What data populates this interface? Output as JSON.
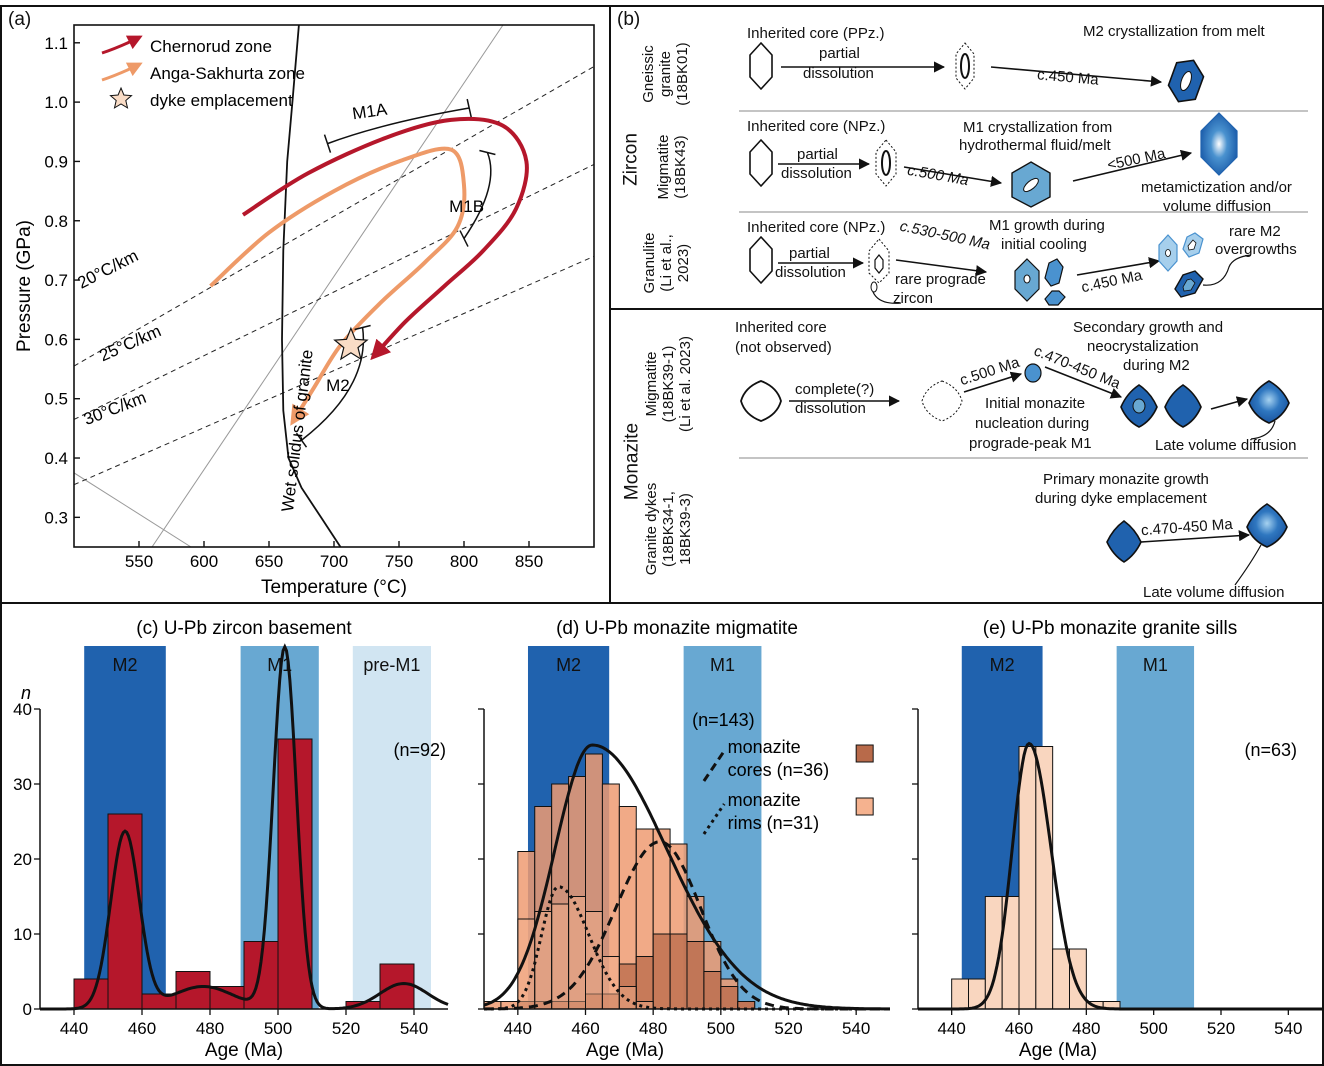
{
  "panel_labels": {
    "a": "(a)",
    "b": "(b)"
  },
  "panel_a": {
    "legend": [
      "Chernorud zone",
      "Anga-Sakhurta zone",
      "dyke emplacement"
    ],
    "colors": {
      "chernorud": "#b5172b",
      "anga": "#ee9a68",
      "star": "#f9dcc6"
    },
    "path_labels": {
      "m1a": "M1A",
      "m1b": "M1B",
      "m2": "M2"
    },
    "gradients": [
      "20°C/km",
      "25°C/km",
      "30°C/km"
    ],
    "solidus_label": "Wet solidus of granite"
  },
  "panel_b": {
    "group_zircon": "Zircon",
    "group_monazite": "Monazite",
    "rows": [
      {
        "label": [
          "Gneissic",
          "granite",
          "(18BK01)"
        ],
        "texts": [
          "Inherited core (PPz.)",
          "partial",
          "dissolution",
          "M2 crystallization from melt",
          "c.450 Ma"
        ]
      },
      {
        "label": [
          "Migmatite",
          "(18BK43)"
        ],
        "texts": [
          "Inherited core (NPz.)",
          "M1 crystallization from",
          "hydrothermal fluid/melt",
          "partial",
          "dissolution",
          "c.500 Ma",
          "<500 Ma",
          "metamictization and/or",
          "volume diffusion"
        ]
      },
      {
        "label": [
          "Granulite",
          "(Li et al.,",
          "2023)"
        ],
        "texts": [
          "Inherited core (NPz.)",
          "c.530-500 Ma",
          "M1 growth during",
          "initial cooling",
          "partial",
          "dissolution",
          "rare prograde",
          "zircon",
          "rare M2",
          "overgrowths",
          "c.450 Ma"
        ]
      },
      {
        "label": [
          "Migmatite",
          "(18BK39-1)",
          "(Li et al. 2023)"
        ],
        "texts": [
          "Inherited core",
          "(not observed)",
          "Secondary growth and",
          "neocrystalization",
          "during M2",
          "c.500 Ma",
          "c.470-450 Ma",
          "complete(?)",
          "dissolution",
          "Initial monazite",
          "nucleation during",
          "prograde-peak M1",
          "Late volume diffusion"
        ]
      },
      {
        "label": [
          "Granite dykes",
          "(18BK34-1,",
          "18BK39-3)"
        ],
        "texts": [
          "Primary monazite growth",
          "during dyke emplacement",
          "c.470-450 Ma",
          "Late volume diffusion"
        ]
      }
    ]
  },
  "chart_data": [
    {
      "type": "line",
      "panel": "(a)",
      "xlabel": "Temperature (°C)",
      "ylabel": "Pressure (GPa)",
      "xlim": [
        500,
        900
      ],
      "ylim": [
        0.25,
        1.13
      ],
      "xticks": [
        550,
        600,
        650,
        700,
        750,
        800,
        850
      ],
      "yticks": [
        0.3,
        0.4,
        0.5,
        0.6,
        0.7,
        0.8,
        0.9,
        1.0,
        1.1
      ],
      "series": [
        {
          "name": "Chernorud zone",
          "x": [
            630,
            680,
            740,
            790,
            830,
            848,
            840,
            815,
            785,
            755,
            730
          ],
          "y": [
            0.81,
            0.88,
            0.94,
            0.97,
            0.96,
            0.9,
            0.82,
            0.75,
            0.69,
            0.63,
            0.57
          ]
        },
        {
          "name": "Anga-Sakhurta zone",
          "x": [
            605,
            650,
            700,
            750,
            790,
            800,
            795,
            770,
            735,
            705,
            685,
            668
          ],
          "y": [
            0.69,
            0.78,
            0.85,
            0.9,
            0.92,
            0.86,
            0.79,
            0.73,
            0.66,
            0.59,
            0.52,
            0.46
          ]
        },
        {
          "name": "dyke emplacement",
          "x": [
            713
          ],
          "y": [
            0.59
          ]
        }
      ]
    },
    {
      "type": "bar",
      "title": "(c) U-Pb zircon basement",
      "xlabel": "Age (Ma)",
      "ylabel": "n",
      "xlim": [
        430,
        550
      ],
      "ylim": [
        0,
        40
      ],
      "xticks": [
        440,
        460,
        480,
        500,
        520,
        540
      ],
      "yticks": [
        0,
        10,
        20,
        30,
        40
      ],
      "annotation": "(n=92)",
      "bands": [
        {
          "name": "M2",
          "from": 443,
          "to": 467,
          "color": "#2062ae"
        },
        {
          "name": "M1",
          "from": 489,
          "to": 512,
          "color": "#68a8d2"
        },
        {
          "name": "pre-M1",
          "from": 522,
          "to": 545,
          "color": "#d1e5f2"
        }
      ],
      "bin_width": 10,
      "bin_starts": [
        440,
        450,
        460,
        470,
        480,
        490,
        500,
        510,
        520,
        530
      ],
      "values": [
        4,
        26,
        2,
        5,
        3,
        9,
        36,
        0,
        1,
        6
      ],
      "bar_color": "#b5172b",
      "kde_peaks": [
        {
          "center": 455,
          "sigma": 4.2,
          "height": 23.6
        },
        {
          "center": 502,
          "sigma": 3.4,
          "height": 48.2
        },
        {
          "center": 478,
          "sigma": 9.0,
          "height": 3.0
        },
        {
          "center": 537,
          "sigma": 7.0,
          "height": 3.4
        }
      ]
    },
    {
      "type": "bar",
      "title": "(d) U-Pb monazite migmatite",
      "xlabel": "Age (Ma)",
      "ylabel": "",
      "xlim": [
        430,
        550
      ],
      "ylim": [
        0,
        40
      ],
      "xticks": [
        440,
        460,
        480,
        500,
        520,
        540
      ],
      "annotation": "(n=143)",
      "bands": [
        {
          "name": "M2",
          "from": 443,
          "to": 467,
          "color": "#2062ae"
        },
        {
          "name": "M1",
          "from": 489,
          "to": 512,
          "color": "#68a8d2"
        }
      ],
      "bin_width": 5,
      "bin_starts": [
        430,
        435,
        440,
        445,
        450,
        455,
        460,
        465,
        470,
        475,
        480,
        485,
        490,
        495,
        500,
        505
      ],
      "legend": [
        {
          "name": "monazite cores (n=36)",
          "line": "dashed",
          "color": "#b86a4a"
        },
        {
          "name": "monazite rims (n=31)",
          "line": "dotted",
          "color": "#f5b28f"
        }
      ],
      "series": [
        {
          "name": "all",
          "values": [
            1,
            1,
            21,
            27,
            30,
            31,
            34,
            30,
            27,
            24,
            24,
            22,
            15,
            9,
            4,
            1
          ]
        },
        {
          "name": "monazite cores (n=36)",
          "values": [
            0,
            0,
            1,
            1,
            1,
            1,
            2,
            2,
            6,
            7,
            10,
            10,
            9,
            5,
            3,
            1
          ]
        },
        {
          "name": "monazite rims (n=31)",
          "values": [
            0,
            0,
            12,
            13,
            14,
            15,
            13,
            7,
            3,
            1,
            0,
            0,
            0,
            0,
            0,
            0
          ]
        }
      ],
      "curves": [
        {
          "name": "all",
          "center": 462,
          "sigma_left": 11,
          "sigma_right": 22,
          "height": 35.2,
          "style": "solid"
        },
        {
          "name": "monazite cores (n=36)",
          "center": 482,
          "sigma_left": 13,
          "sigma_right": 12,
          "height": 22.3,
          "style": "dashed"
        },
        {
          "name": "monazite rims (n=31)",
          "center": 452,
          "sigma_left": 5,
          "sigma_right": 9,
          "height": 16.3,
          "style": "dotted"
        }
      ]
    },
    {
      "type": "bar",
      "title": "(e) U-Pb monazite granite sills",
      "xlabel": "Age (Ma)",
      "ylabel": "",
      "xlim": [
        430,
        550
      ],
      "ylim": [
        0,
        40
      ],
      "xticks": [
        440,
        460,
        480,
        500,
        520,
        540
      ],
      "annotation": "(n=63)",
      "bands": [
        {
          "name": "M2",
          "from": 443,
          "to": 467,
          "color": "#2062ae"
        },
        {
          "name": "M1",
          "from": 489,
          "to": 512,
          "color": "#68a8d2"
        }
      ],
      "bin_width": 5,
      "bin_starts": [
        440,
        445,
        450,
        455,
        460,
        465,
        470,
        475,
        480,
        485,
        490
      ],
      "values": [
        4,
        4,
        15,
        15,
        35,
        35,
        8,
        8,
        1,
        1,
        0
      ],
      "bar_color": "#f9d6bf",
      "curves": [
        {
          "name": "all",
          "center": 463,
          "sigma_left": 5,
          "sigma_right": 6.5,
          "height": 35.4,
          "style": "solid"
        }
      ]
    }
  ]
}
